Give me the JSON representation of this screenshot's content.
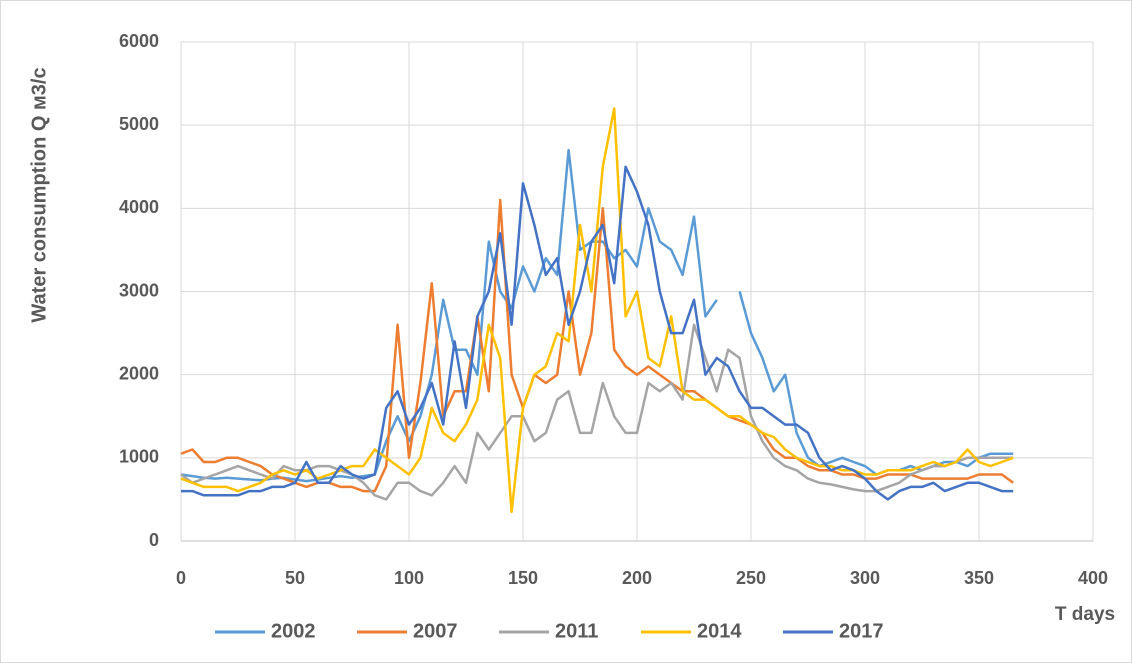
{
  "chart_data": {
    "type": "line",
    "y_label": "Water consumption Q м3/с",
    "x_label": "T days",
    "x": [
      0,
      5,
      10,
      15,
      20,
      25,
      30,
      35,
      40,
      45,
      50,
      55,
      60,
      65,
      70,
      75,
      80,
      85,
      90,
      95,
      100,
      105,
      110,
      115,
      120,
      125,
      130,
      135,
      140,
      145,
      150,
      155,
      160,
      165,
      170,
      175,
      180,
      185,
      190,
      195,
      200,
      205,
      210,
      215,
      220,
      225,
      230,
      235,
      240,
      245,
      250,
      255,
      260,
      265,
      270,
      275,
      280,
      285,
      290,
      295,
      300,
      305,
      310,
      315,
      320,
      325,
      330,
      335,
      340,
      345,
      350,
      355,
      360,
      365
    ],
    "series": [
      {
        "name": "2002",
        "color": "#5b9bd5",
        "values": [
          800,
          780,
          760,
          750,
          760,
          750,
          740,
          730,
          750,
          760,
          740,
          720,
          740,
          760,
          780,
          760,
          780,
          800,
          1200,
          1500,
          1200,
          1500,
          2000,
          2900,
          2300,
          2300,
          2000,
          3600,
          3000,
          2800,
          3300,
          3000,
          3400,
          3200,
          4700,
          3500,
          3600,
          3600,
          3400,
          3500,
          3300,
          4000,
          3600,
          3500,
          3200,
          3900,
          2700,
          2900,
          null,
          3000,
          2500,
          2200,
          1800,
          2000,
          1300,
          1000,
          900,
          950,
          1000,
          950,
          900,
          800,
          850,
          850,
          900,
          850,
          900,
          950,
          950,
          900,
          1000,
          1050,
          1050,
          1050
        ]
      },
      {
        "name": "2007",
        "color": "#ed7d31",
        "values": [
          1050,
          1100,
          950,
          950,
          1000,
          1000,
          950,
          900,
          800,
          750,
          700,
          650,
          700,
          700,
          650,
          650,
          600,
          600,
          900,
          2600,
          1000,
          1900,
          3100,
          1500,
          1800,
          1800,
          2700,
          1800,
          4100,
          2000,
          1600,
          2000,
          1900,
          2000,
          3000,
          2000,
          2500,
          4000,
          2300,
          2100,
          2000,
          2100,
          2000,
          1900,
          1800,
          1800,
          1700,
          1600,
          1500,
          1450,
          1400,
          1300,
          1100,
          1000,
          1000,
          900,
          850,
          850,
          800,
          800,
          750,
          750,
          800,
          800,
          800,
          750,
          750,
          750,
          750,
          750,
          800,
          800,
          800,
          700
        ]
      },
      {
        "name": "2011",
        "color": "#a5a5a5",
        "values": [
          800,
          700,
          750,
          800,
          850,
          900,
          850,
          800,
          750,
          900,
          850,
          850,
          900,
          900,
          850,
          800,
          700,
          550,
          500,
          700,
          700,
          600,
          550,
          700,
          900,
          700,
          1300,
          1100,
          1300,
          1500,
          1500,
          1200,
          1300,
          1700,
          1800,
          1300,
          1300,
          1900,
          1500,
          1300,
          1300,
          1900,
          1800,
          1900,
          1700,
          2600,
          2200,
          1800,
          2300,
          2200,
          1500,
          1200,
          1000,
          900,
          850,
          750,
          700,
          680,
          650,
          620,
          600,
          600,
          650,
          700,
          800,
          850,
          900,
          900,
          950,
          1000,
          1000,
          1000,
          1000,
          1000
        ]
      },
      {
        "name": "2014",
        "color": "#ffc000",
        "values": [
          750,
          700,
          650,
          650,
          650,
          600,
          650,
          700,
          800,
          850,
          800,
          850,
          750,
          800,
          850,
          900,
          900,
          1100,
          1000,
          900,
          800,
          1000,
          1600,
          1300,
          1200,
          1400,
          1700,
          2600,
          2200,
          350,
          1600,
          2000,
          2100,
          2500,
          2400,
          3800,
          3000,
          4500,
          5200,
          2700,
          3000,
          2200,
          2100,
          2700,
          1800,
          1700,
          1700,
          1600,
          1500,
          1500,
          1400,
          1300,
          1250,
          1100,
          1000,
          950,
          900,
          900,
          850,
          850,
          800,
          800,
          850,
          850,
          850,
          900,
          950,
          900,
          950,
          1100,
          950,
          900,
          950,
          1000
        ]
      },
      {
        "name": "2017",
        "color": "#4472c4",
        "values": [
          600,
          600,
          550,
          550,
          550,
          550,
          600,
          600,
          650,
          650,
          700,
          950,
          700,
          700,
          900,
          800,
          750,
          800,
          1600,
          1800,
          1400,
          1600,
          1900,
          1400,
          2400,
          1600,
          2700,
          3000,
          3700,
          2600,
          4300,
          3800,
          3200,
          3400,
          2600,
          3000,
          3600,
          3800,
          3100,
          4500,
          4200,
          3800,
          3000,
          2500,
          2500,
          2900,
          2000,
          2200,
          2100,
          1800,
          1600,
          1600,
          1500,
          1400,
          1400,
          1300,
          1000,
          850,
          900,
          850,
          750,
          600,
          500,
          600,
          650,
          650,
          700,
          600,
          650,
          700,
          700,
          650,
          600,
          600
        ]
      }
    ],
    "xlim": [
      0,
      400
    ],
    "xticks": [
      0,
      50,
      100,
      150,
      200,
      250,
      300,
      350,
      400
    ],
    "ylim": [
      0,
      6000
    ],
    "yticks": [
      0,
      1000,
      2000,
      3000,
      4000,
      5000,
      6000
    ],
    "grid": true,
    "legend": "bottom"
  }
}
